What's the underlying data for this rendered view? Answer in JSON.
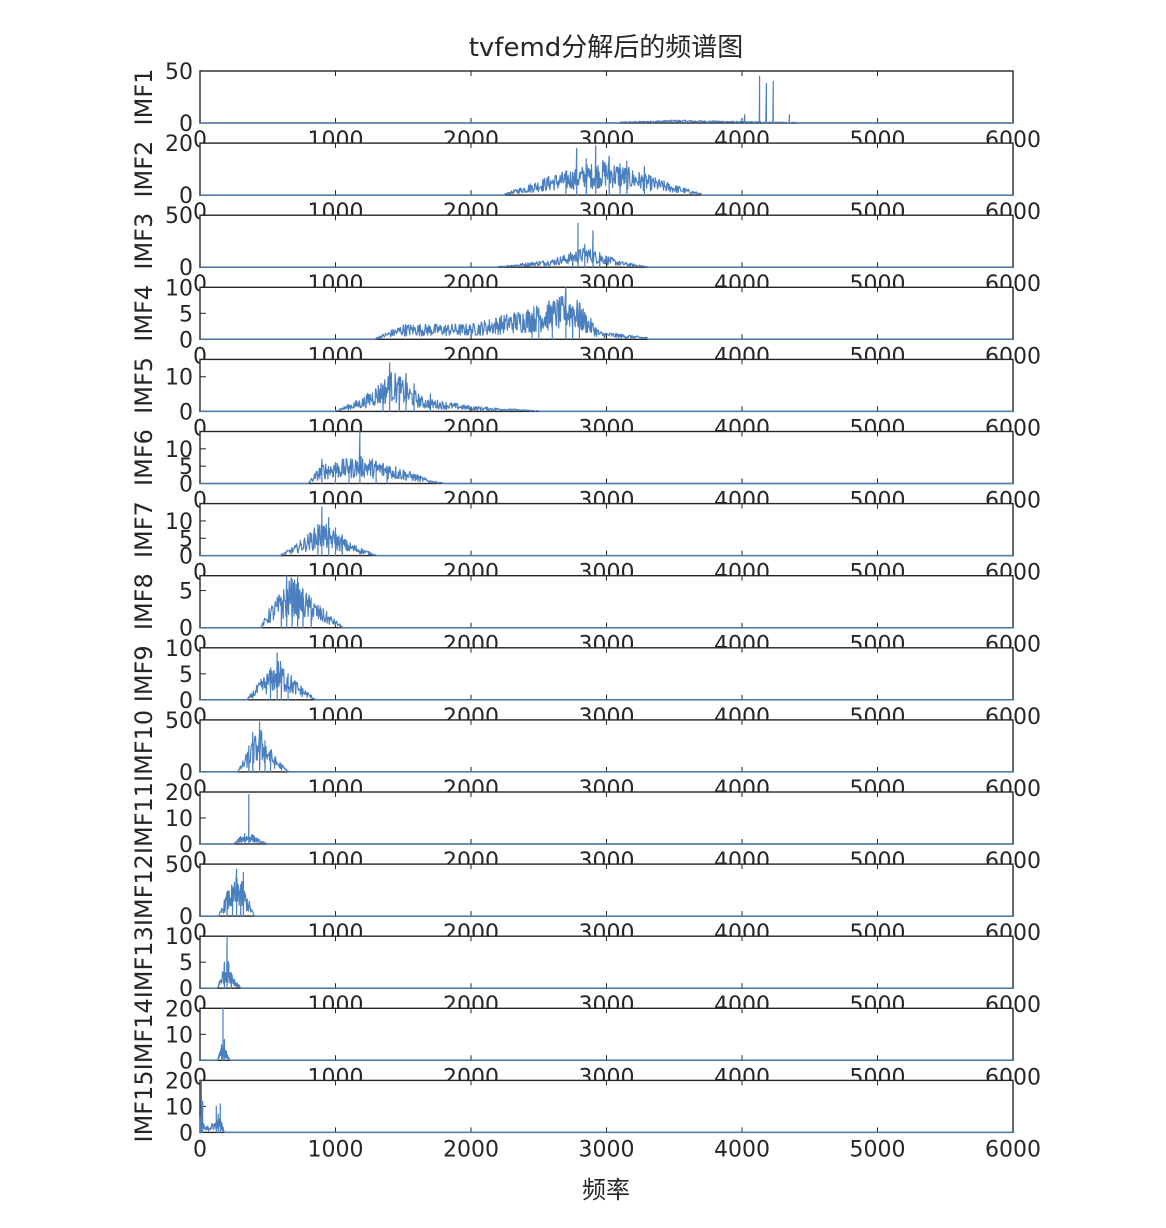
{
  "chart_data": {
    "type": "line",
    "title": "tvfemd分解后的频谱图",
    "xlabel": "频率",
    "xlim": [
      0,
      6000
    ],
    "xticks": [
      0,
      1000,
      2000,
      3000,
      4000,
      5000,
      6000
    ],
    "line_color": "#4a7fc0",
    "panels": [
      {
        "name": "IMF1",
        "ylim": [
          0,
          50
        ],
        "yticks": [
          0,
          50
        ],
        "ytick_labels": [
          "0",
          "50"
        ],
        "range": [
          3100,
          4400
        ],
        "base": 1.5,
        "peaks": [
          [
            4020,
            8
          ],
          [
            4130,
            45
          ],
          [
            4180,
            38
          ],
          [
            4230,
            40
          ],
          [
            4350,
            8
          ]
        ],
        "envelope": [
          [
            3100,
            0.5
          ],
          [
            3500,
            1.5
          ],
          [
            4000,
            0.8
          ],
          [
            4400,
            0.3
          ]
        ]
      },
      {
        "name": "IMF2",
        "ylim": [
          0,
          20
        ],
        "yticks": [
          0,
          20
        ],
        "ytick_labels": [
          "0",
          "20"
        ],
        "range": [
          2250,
          3700
        ],
        "base": 3,
        "peaks": [
          [
            2780,
            18
          ],
          [
            2850,
            14
          ],
          [
            2920,
            19
          ],
          [
            3020,
            15
          ],
          [
            3150,
            13
          ],
          [
            3280,
            11
          ],
          [
            2700,
            9
          ],
          [
            3100,
            12
          ]
        ],
        "envelope": [
          [
            2250,
            0.3
          ],
          [
            2600,
            4
          ],
          [
            3000,
            7
          ],
          [
            3400,
            3
          ],
          [
            3700,
            0.3
          ]
        ]
      },
      {
        "name": "IMF3",
        "ylim": [
          0,
          50
        ],
        "yticks": [
          0,
          50
        ],
        "ytick_labels": [
          "0",
          "50"
        ],
        "range": [
          2200,
          3300
        ],
        "base": 3,
        "peaks": [
          [
            2790,
            42
          ],
          [
            2840,
            22
          ],
          [
            2900,
            35
          ],
          [
            2750,
            12
          ],
          [
            2950,
            14
          ]
        ],
        "envelope": [
          [
            2200,
            0.3
          ],
          [
            2600,
            4
          ],
          [
            2850,
            10
          ],
          [
            3100,
            3
          ],
          [
            3300,
            0.3
          ]
        ]
      },
      {
        "name": "IMF4",
        "ylim": [
          0,
          10
        ],
        "yticks": [
          0,
          5,
          10
        ],
        "ytick_labels": [
          "0",
          "5",
          "10"
        ],
        "range": [
          1300,
          3300
        ],
        "base": 1.5,
        "peaks": [
          [
            2500,
            6
          ],
          [
            2700,
            10
          ],
          [
            2750,
            6
          ],
          [
            2800,
            7
          ],
          [
            2450,
            5
          ],
          [
            2600,
            6
          ]
        ],
        "envelope": [
          [
            1300,
            0.2
          ],
          [
            1500,
            1.5
          ],
          [
            2000,
            1.5
          ],
          [
            2400,
            3
          ],
          [
            2750,
            4.5
          ],
          [
            2950,
            0.8
          ],
          [
            3300,
            0.2
          ]
        ]
      },
      {
        "name": "IMF5",
        "ylim": [
          0,
          15
        ],
        "yticks": [
          0,
          10
        ],
        "ytick_labels": [
          "0",
          "10"
        ],
        "range": [
          1000,
          2500
        ],
        "base": 2,
        "peaks": [
          [
            1400,
            14
          ],
          [
            1470,
            10
          ],
          [
            1520,
            11
          ],
          [
            1580,
            8
          ],
          [
            1350,
            7
          ],
          [
            1700,
            5
          ]
        ],
        "envelope": [
          [
            1000,
            0.2
          ],
          [
            1200,
            2
          ],
          [
            1420,
            6
          ],
          [
            1650,
            2
          ],
          [
            2000,
            0.8
          ],
          [
            2500,
            0.1
          ]
        ]
      },
      {
        "name": "IMF6",
        "ylim": [
          0,
          15
        ],
        "yticks": [
          0,
          5,
          10
        ],
        "ytick_labels": [
          "0",
          "5",
          "10"
        ],
        "range": [
          800,
          1800
        ],
        "base": 1.5,
        "peaks": [
          [
            1180,
            15
          ],
          [
            900,
            7
          ],
          [
            1000,
            6
          ],
          [
            1300,
            6
          ],
          [
            1380,
            5
          ],
          [
            1100,
            5
          ]
        ],
        "envelope": [
          [
            800,
            0.2
          ],
          [
            900,
            3
          ],
          [
            1200,
            4
          ],
          [
            1400,
            3
          ],
          [
            1700,
            0.5
          ],
          [
            1800,
            0.1
          ]
        ]
      },
      {
        "name": "IMF7",
        "ylim": [
          0,
          15
        ],
        "yticks": [
          0,
          5,
          10
        ],
        "ytick_labels": [
          "0",
          "5",
          "10"
        ],
        "range": [
          600,
          1300
        ],
        "base": 1.5,
        "peaks": [
          [
            900,
            14
          ],
          [
            950,
            11
          ],
          [
            870,
            9
          ],
          [
            1000,
            8
          ],
          [
            1050,
            6
          ]
        ],
        "envelope": [
          [
            600,
            0.2
          ],
          [
            700,
            1.5
          ],
          [
            900,
            5
          ],
          [
            1100,
            2
          ],
          [
            1300,
            0.1
          ]
        ]
      },
      {
        "name": "IMF8",
        "ylim": [
          0,
          7
        ],
        "yticks": [
          0,
          5
        ],
        "ytick_labels": [
          "0",
          "5"
        ],
        "range": [
          450,
          1050
        ],
        "base": 0.8,
        "peaks": [
          [
            640,
            7
          ],
          [
            680,
            6.5
          ],
          [
            720,
            7
          ],
          [
            760,
            5
          ],
          [
            820,
            4
          ],
          [
            600,
            4
          ]
        ],
        "envelope": [
          [
            450,
            0.1
          ],
          [
            520,
            1.5
          ],
          [
            680,
            3.5
          ],
          [
            850,
            1.8
          ],
          [
            1050,
            0.1
          ]
        ]
      },
      {
        "name": "IMF9",
        "ylim": [
          0,
          10
        ],
        "yticks": [
          0,
          5,
          10
        ],
        "ytick_labels": [
          "0",
          "5",
          "10"
        ],
        "range": [
          350,
          850
        ],
        "base": 1,
        "peaks": [
          [
            570,
            9
          ],
          [
            600,
            6
          ],
          [
            650,
            5
          ],
          [
            520,
            5
          ]
        ],
        "envelope": [
          [
            350,
            0.1
          ],
          [
            450,
            2
          ],
          [
            580,
            4
          ],
          [
            700,
            2
          ],
          [
            850,
            0.1
          ]
        ]
      },
      {
        "name": "IMF10",
        "ylim": [
          0,
          50
        ],
        "yticks": [
          0,
          50
        ],
        "ytick_labels": [
          "0",
          "50"
        ],
        "range": [
          280,
          650
        ],
        "base": 4,
        "peaks": [
          [
            440,
            48
          ],
          [
            390,
            38
          ],
          [
            480,
            30
          ],
          [
            520,
            20
          ],
          [
            360,
            25
          ]
        ],
        "envelope": [
          [
            280,
            0.5
          ],
          [
            350,
            10
          ],
          [
            440,
            22
          ],
          [
            550,
            8
          ],
          [
            650,
            0.5
          ]
        ]
      },
      {
        "name": "IMF11",
        "ylim": [
          0,
          20
        ],
        "yticks": [
          0,
          10,
          20
        ],
        "ytick_labels": [
          "0",
          "10",
          "20"
        ],
        "range": [
          250,
          500
        ],
        "base": 0.8,
        "peaks": [
          [
            360,
            19
          ],
          [
            330,
            4
          ],
          [
            400,
            3
          ]
        ],
        "envelope": [
          [
            250,
            0.1
          ],
          [
            300,
            1.5
          ],
          [
            380,
            2
          ],
          [
            450,
            0.6
          ],
          [
            500,
            0.1
          ]
        ]
      },
      {
        "name": "IMF12",
        "ylim": [
          0,
          50
        ],
        "yticks": [
          0,
          50
        ],
        "ytick_labels": [
          "0",
          "50"
        ],
        "range": [
          140,
          400
        ],
        "base": 4,
        "peaks": [
          [
            270,
            45
          ],
          [
            320,
            42
          ],
          [
            240,
            25
          ],
          [
            300,
            30
          ],
          [
            200,
            15
          ]
        ],
        "envelope": [
          [
            140,
            0.5
          ],
          [
            200,
            12
          ],
          [
            290,
            20
          ],
          [
            360,
            8
          ],
          [
            400,
            0.5
          ]
        ]
      },
      {
        "name": "IMF13",
        "ylim": [
          0,
          10
        ],
        "yticks": [
          0,
          5,
          10
        ],
        "ytick_labels": [
          "0",
          "5",
          "10"
        ],
        "range": [
          130,
          300
        ],
        "base": 0.8,
        "peaks": [
          [
            200,
            10
          ],
          [
            180,
            5
          ],
          [
            230,
            3
          ]
        ],
        "envelope": [
          [
            130,
            0.1
          ],
          [
            170,
            2
          ],
          [
            200,
            3
          ],
          [
            260,
            0.8
          ],
          [
            300,
            0.1
          ]
        ]
      },
      {
        "name": "IMF14",
        "ylim": [
          0,
          20
        ],
        "yticks": [
          0,
          10,
          20
        ],
        "ytick_labels": [
          "0",
          "10",
          "20"
        ],
        "range": [
          130,
          220
        ],
        "base": 0.5,
        "peaks": [
          [
            170,
            20
          ],
          [
            160,
            6
          ],
          [
            180,
            8
          ]
        ],
        "envelope": [
          [
            130,
            0.1
          ],
          [
            160,
            3
          ],
          [
            175,
            3
          ],
          [
            220,
            0.1
          ]
        ]
      },
      {
        "name": "IMF15",
        "ylim": [
          0,
          20
        ],
        "yticks": [
          0,
          10,
          20
        ],
        "ytick_labels": [
          "0",
          "10",
          "20"
        ],
        "range": [
          0,
          180
        ],
        "base": 0.8,
        "peaks": [
          [
            10,
            20
          ],
          [
            20,
            12
          ],
          [
            120,
            10
          ],
          [
            150,
            11
          ],
          [
            135,
            7
          ]
        ],
        "envelope": [
          [
            0,
            3
          ],
          [
            40,
            1
          ],
          [
            100,
            2
          ],
          [
            150,
            3
          ],
          [
            180,
            0.1
          ]
        ]
      }
    ]
  }
}
